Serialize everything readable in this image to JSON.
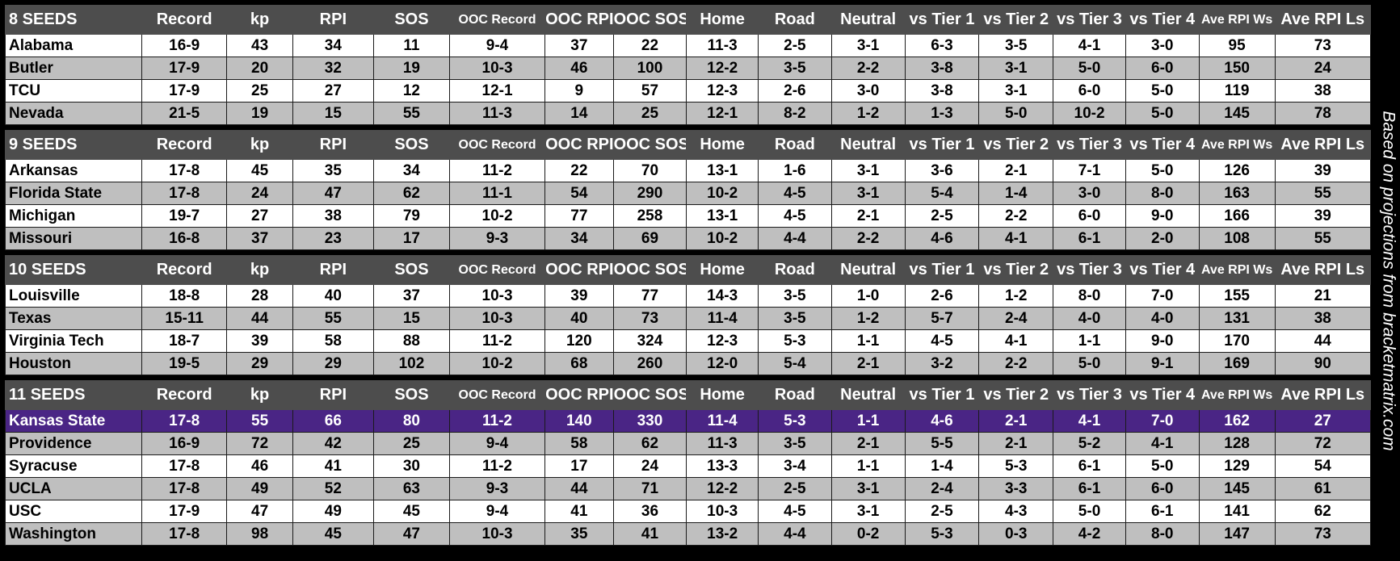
{
  "columns": [
    "Record",
    "kp",
    "RPI",
    "SOS",
    "OOC Record",
    "OOC RPI",
    "OOC SOS",
    "Home",
    "Road",
    "Neutral",
    "vs Tier 1",
    "vs Tier 2",
    "vs Tier 3",
    "vs Tier 4",
    "Ave RPI Ws",
    "Ave RPI Ls"
  ],
  "small_columns": [
    "OOC Record",
    "Ave RPI Ws"
  ],
  "highlight_color": "#4a2585",
  "side_note": "Based on projections from bracketmatrix.com",
  "groups": [
    {
      "title": "8 SEEDS",
      "rows": [
        {
          "name": "Alabama",
          "values": [
            "16-9",
            "43",
            "34",
            "11",
            "9-4",
            "37",
            "22",
            "11-3",
            "2-5",
            "3-1",
            "6-3",
            "3-5",
            "4-1",
            "3-0",
            "95",
            "73"
          ]
        },
        {
          "name": "Butler",
          "values": [
            "17-9",
            "20",
            "32",
            "19",
            "10-3",
            "46",
            "100",
            "12-2",
            "3-5",
            "2-2",
            "3-8",
            "3-1",
            "5-0",
            "6-0",
            "150",
            "24"
          ]
        },
        {
          "name": "TCU",
          "values": [
            "17-9",
            "25",
            "27",
            "12",
            "12-1",
            "9",
            "57",
            "12-3",
            "2-6",
            "3-0",
            "3-8",
            "3-1",
            "6-0",
            "5-0",
            "119",
            "38"
          ]
        },
        {
          "name": "Nevada",
          "values": [
            "21-5",
            "19",
            "15",
            "55",
            "11-3",
            "14",
            "25",
            "12-1",
            "8-2",
            "1-2",
            "1-3",
            "5-0",
            "10-2",
            "5-0",
            "145",
            "78"
          ]
        }
      ]
    },
    {
      "title": "9 SEEDS",
      "rows": [
        {
          "name": "Arkansas",
          "values": [
            "17-8",
            "45",
            "35",
            "34",
            "11-2",
            "22",
            "70",
            "13-1",
            "1-6",
            "3-1",
            "3-6",
            "2-1",
            "7-1",
            "5-0",
            "126",
            "39"
          ]
        },
        {
          "name": "Florida State",
          "values": [
            "17-8",
            "24",
            "47",
            "62",
            "11-1",
            "54",
            "290",
            "10-2",
            "4-5",
            "3-1",
            "5-4",
            "1-4",
            "3-0",
            "8-0",
            "163",
            "55"
          ]
        },
        {
          "name": "Michigan",
          "values": [
            "19-7",
            "27",
            "38",
            "79",
            "10-2",
            "77",
            "258",
            "13-1",
            "4-5",
            "2-1",
            "2-5",
            "2-2",
            "6-0",
            "9-0",
            "166",
            "39"
          ]
        },
        {
          "name": "Missouri",
          "values": [
            "16-8",
            "37",
            "23",
            "17",
            "9-3",
            "34",
            "69",
            "10-2",
            "4-4",
            "2-2",
            "4-6",
            "4-1",
            "6-1",
            "2-0",
            "108",
            "55"
          ]
        }
      ]
    },
    {
      "title": "10 SEEDS",
      "rows": [
        {
          "name": "Louisville",
          "values": [
            "18-8",
            "28",
            "40",
            "37",
            "10-3",
            "39",
            "77",
            "14-3",
            "3-5",
            "1-0",
            "2-6",
            "1-2",
            "8-0",
            "7-0",
            "155",
            "21"
          ]
        },
        {
          "name": "Texas",
          "values": [
            "15-11",
            "44",
            "55",
            "15",
            "10-3",
            "40",
            "73",
            "11-4",
            "3-5",
            "1-2",
            "5-7",
            "2-4",
            "4-0",
            "4-0",
            "131",
            "38"
          ]
        },
        {
          "name": "Virginia Tech",
          "values": [
            "18-7",
            "39",
            "58",
            "88",
            "11-2",
            "120",
            "324",
            "12-3",
            "5-3",
            "1-1",
            "4-5",
            "4-1",
            "1-1",
            "9-0",
            "170",
            "44"
          ]
        },
        {
          "name": "Houston",
          "values": [
            "19-5",
            "29",
            "29",
            "102",
            "10-2",
            "68",
            "260",
            "12-0",
            "5-4",
            "2-1",
            "3-2",
            "2-2",
            "5-0",
            "9-1",
            "169",
            "90"
          ]
        }
      ]
    },
    {
      "title": "11 SEEDS",
      "rows": [
        {
          "name": "Kansas State",
          "highlight": true,
          "values": [
            "17-8",
            "55",
            "66",
            "80",
            "11-2",
            "140",
            "330",
            "11-4",
            "5-3",
            "1-1",
            "4-6",
            "2-1",
            "4-1",
            "7-0",
            "162",
            "27"
          ]
        },
        {
          "name": "Providence",
          "values": [
            "16-9",
            "72",
            "42",
            "25",
            "9-4",
            "58",
            "62",
            "11-3",
            "3-5",
            "2-1",
            "5-5",
            "2-1",
            "5-2",
            "4-1",
            "128",
            "72"
          ]
        },
        {
          "name": "Syracuse",
          "values": [
            "17-8",
            "46",
            "41",
            "30",
            "11-2",
            "17",
            "24",
            "13-3",
            "3-4",
            "1-1",
            "1-4",
            "5-3",
            "6-1",
            "5-0",
            "129",
            "54"
          ]
        },
        {
          "name": "UCLA",
          "values": [
            "17-8",
            "49",
            "52",
            "63",
            "9-3",
            "44",
            "71",
            "12-2",
            "2-5",
            "3-1",
            "2-4",
            "3-3",
            "6-1",
            "6-0",
            "145",
            "61"
          ]
        },
        {
          "name": "USC",
          "values": [
            "17-9",
            "47",
            "49",
            "45",
            "9-4",
            "41",
            "36",
            "10-3",
            "4-5",
            "3-1",
            "2-5",
            "4-3",
            "5-0",
            "6-1",
            "141",
            "62"
          ]
        },
        {
          "name": "Washington",
          "values": [
            "17-8",
            "98",
            "45",
            "47",
            "10-3",
            "35",
            "41",
            "13-2",
            "4-4",
            "0-2",
            "5-3",
            "0-3",
            "4-2",
            "8-0",
            "147",
            "73"
          ]
        }
      ]
    }
  ]
}
